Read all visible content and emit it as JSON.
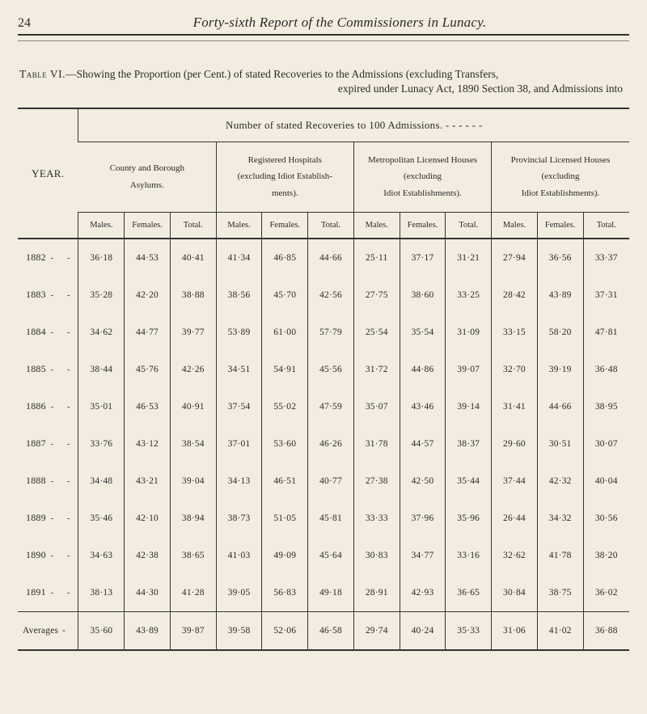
{
  "page": {
    "number": "24",
    "running_title": "Forty-sixth Report of the Commissioners in Lunacy.",
    "table_label": "Table VI.",
    "table_caption_1": "—Showing the Proportion (per Cent.) of stated Recoveries to the Admissions (excluding Transfers,",
    "table_caption_2": "expired under Lunacy Act, 1890 Section 38, and Admissions into"
  },
  "header": {
    "number_line": "Number of stated Recoveries to 100 Admissions.      -     -     -     -     -     -",
    "year_label": "YEAR.",
    "groups": [
      {
        "line1": "County and Borough",
        "line2": "Asylums."
      },
      {
        "line1": "Registered Hospitals",
        "line2": "(excluding Idiot Establish-",
        "line3": "ments)."
      },
      {
        "line1": "Metropolitan Licensed Houses",
        "line2": "(excluding",
        "line3": "Idiot Establishments)."
      },
      {
        "line1": "Provincial Licensed Houses",
        "line2": "(excluding",
        "line3": "Idiot Establishments)."
      }
    ],
    "sub_cols": [
      "Males.",
      "Females.",
      "Total.",
      "Males.",
      "Females.",
      "Total.",
      "Males.",
      "Females.",
      "Total.",
      "Males.",
      "Females.",
      "Total."
    ]
  },
  "rows": [
    {
      "year": "1882",
      "v": [
        "36·18",
        "44·53",
        "40·41",
        "41·34",
        "46·85",
        "44·66",
        "25·11",
        "37·17",
        "31·21",
        "27·94",
        "36·56",
        "33·37"
      ]
    },
    {
      "year": "1883",
      "v": [
        "35·28",
        "42·20",
        "38·88",
        "38·56",
        "45·70",
        "42·56",
        "27·75",
        "38·60",
        "33·25",
        "28·42",
        "43·89",
        "37·31"
      ]
    },
    {
      "year": "1884",
      "v": [
        "34·62",
        "44·77",
        "39·77",
        "53·89",
        "61·00",
        "57·79",
        "25·54",
        "35·54",
        "31·09",
        "33·15",
        "58·20",
        "47·81"
      ]
    },
    {
      "year": "1885",
      "v": [
        "38·44",
        "45·76",
        "42·26",
        "34·51",
        "54·91",
        "45·56",
        "31·72",
        "44·86",
        "39·07",
        "32·70",
        "39·19",
        "36·48"
      ]
    },
    {
      "year": "1886",
      "v": [
        "35·01",
        "46·53",
        "40·91",
        "37·54",
        "55·02",
        "47·59",
        "35·07",
        "43·46",
        "39·14",
        "31·41",
        "44·66",
        "38·95"
      ]
    },
    {
      "year": "1887",
      "v": [
        "33·76",
        "43·12",
        "38·54",
        "37·01",
        "53·60",
        "46·26",
        "31·78",
        "44·57",
        "38·37",
        "29·60",
        "30·51",
        "30·07"
      ]
    },
    {
      "year": "1888",
      "v": [
        "34·48",
        "43·21",
        "39·04",
        "34·13",
        "46·51",
        "40·77",
        "27·38",
        "42·50",
        "35·44",
        "37·44",
        "42·32",
        "40·04"
      ]
    },
    {
      "year": "1889",
      "v": [
        "35·46",
        "42·10",
        "38·94",
        "38·73",
        "51·05",
        "45·81",
        "33·33",
        "37·96",
        "35·96",
        "26·44",
        "34·32",
        "30·56"
      ]
    },
    {
      "year": "1890",
      "v": [
        "34·63",
        "42·38",
        "38·65",
        "41·03",
        "49·09",
        "45·64",
        "30·83",
        "34·77",
        "33·16",
        "32·62",
        "41·78",
        "38·20"
      ]
    },
    {
      "year": "1891",
      "v": [
        "38·13",
        "44·30",
        "41·28",
        "39·05",
        "56·83",
        "49·18",
        "28·91",
        "42·93",
        "36·65",
        "30·84",
        "38·75",
        "36·02"
      ]
    }
  ],
  "averages": {
    "label": "Averages",
    "v": [
      "35·60",
      "43·89",
      "39·87",
      "39·58",
      "52·06",
      "46·58",
      "29·74",
      "40·24",
      "35·33",
      "31·06",
      "41·02",
      "36·88"
    ]
  },
  "style": {
    "bg": "#f2ede0",
    "rule": "#333333"
  }
}
